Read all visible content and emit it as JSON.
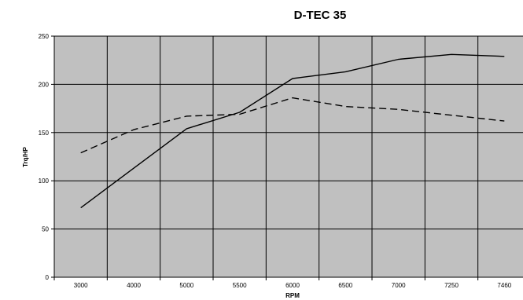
{
  "chart_data": {
    "type": "line",
    "title": "D-TEC 35",
    "xlabel": "RPM",
    "ylabel": "Trq/HP",
    "categories": [
      "3000",
      "4000",
      "5000",
      "5500",
      "6000",
      "6500",
      "7000",
      "7250",
      "7460"
    ],
    "ylim": [
      0,
      250
    ],
    "yticks": [
      0,
      50,
      100,
      150,
      200,
      250
    ],
    "grid": true,
    "legend": "none",
    "colors": {
      "plot_bg": "#c0c0c0",
      "grid": "#000000",
      "line": "#000000"
    },
    "series": [
      {
        "style": "solid",
        "values": [
          72,
          113,
          154,
          171,
          206,
          213,
          226,
          231,
          229
        ]
      },
      {
        "style": "dashed",
        "values": [
          129,
          153,
          167,
          169,
          186,
          177,
          174,
          168,
          162
        ]
      }
    ]
  }
}
